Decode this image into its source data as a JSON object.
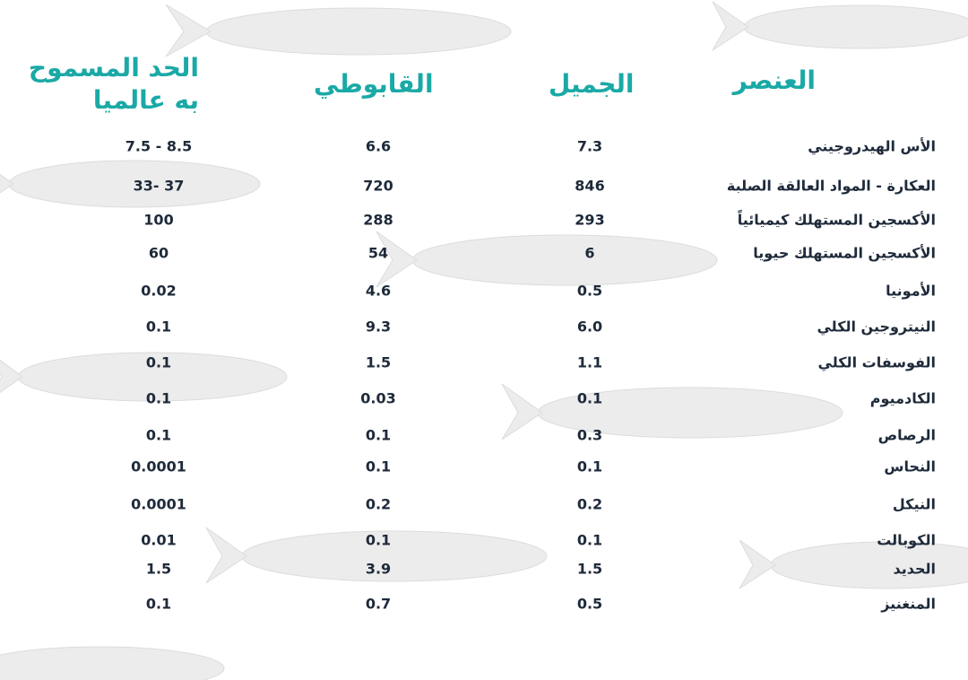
{
  "table": {
    "header": [
      "العنصر",
      "الجميل",
      "القابوطي",
      [
        "الحد المسموح",
        "به عالميا"
      ]
    ],
    "rows": [
      [
        "الأس الهيدروجيني",
        "7.3",
        "6.6",
        "7.5 - 8.5"
      ],
      [
        "العكارة - المواد العالقة الصلبة",
        "846",
        "720",
        "33- 37"
      ],
      [
        "الأكسجين المستهلك كيميائياً",
        "293",
        "288",
        "100"
      ],
      [
        "الأكسجين المستهلك حيويا",
        "6",
        "54",
        "60"
      ],
      [
        "الأمونيا",
        "0.5",
        "4.6",
        "0.02"
      ],
      [
        "النيتروجين الكلي",
        "6.0",
        "9.3",
        "0.1"
      ],
      [
        "الفوسفات الكلي",
        "1.1",
        "1.5",
        "0.1"
      ],
      [
        "الكادميوم",
        "0.1",
        "0.03",
        "0.1"
      ],
      [
        "الرصاص",
        "0.3",
        "0.1",
        "0.1"
      ],
      [
        "النحاس",
        "0.1",
        "0.1",
        "0.0001"
      ],
      [
        "النيكل",
        "0.2",
        "0.2",
        "0.0001"
      ],
      [
        "الكوبالت",
        "0.1",
        "0.1",
        "0.01"
      ],
      [
        "الحديد",
        "1.5",
        "3.9",
        "1.5"
      ],
      [
        "المنغنيز",
        "0.5",
        "0.7",
        "0.1"
      ]
    ]
  }
}
